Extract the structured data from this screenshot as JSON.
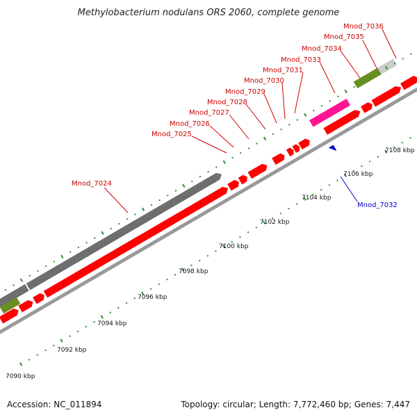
{
  "title": "Methylobacterium nodulans ORS 2060, complete genome",
  "accession": "Accession: NC_011894",
  "summary": "Topology: circular; Length: 7,772,460 bp; Genes: 7,447",
  "colors": {
    "cds": "#ff0000",
    "rna": "#ff1493",
    "pseudo": "#6b8e23",
    "gray_feature": "#808080",
    "light_feature": "#cccccc",
    "axis": "#999999",
    "tick": "#2e8b2e",
    "label_forward": "#cc0000",
    "label_reverse": "#0000cc"
  },
  "ticks": [
    {
      "label": "7090 kbp"
    },
    {
      "label": "7092 kbp"
    },
    {
      "label": "7094 kbp"
    },
    {
      "label": "7096 kbp"
    },
    {
      "label": "7098 kbp"
    },
    {
      "label": "7100 kbp"
    },
    {
      "label": "7102 kbp"
    },
    {
      "label": "7104 kbp"
    },
    {
      "label": "7106 kbp"
    },
    {
      "label": "7108 kbp"
    }
  ],
  "gene_labels": [
    {
      "text": "Mnod_7024",
      "strand": "forward"
    },
    {
      "text": "Mnod_7025",
      "strand": "forward"
    },
    {
      "text": "Mnod_7026",
      "strand": "forward"
    },
    {
      "text": "Mnod_7027",
      "strand": "forward"
    },
    {
      "text": "Mnod_7028",
      "strand": "forward"
    },
    {
      "text": "Mnod_7029",
      "strand": "forward"
    },
    {
      "text": "Mnod_7030",
      "strand": "forward"
    },
    {
      "text": "Mnod_7031",
      "strand": "forward"
    },
    {
      "text": "Mnod_7033",
      "strand": "forward"
    },
    {
      "text": "Mnod_7034",
      "strand": "forward"
    },
    {
      "text": "Mnod_7035",
      "strand": "forward"
    },
    {
      "text": "Mnod_7036",
      "strand": "forward"
    },
    {
      "text": "Mnod_7032",
      "strand": "reverse"
    }
  ]
}
